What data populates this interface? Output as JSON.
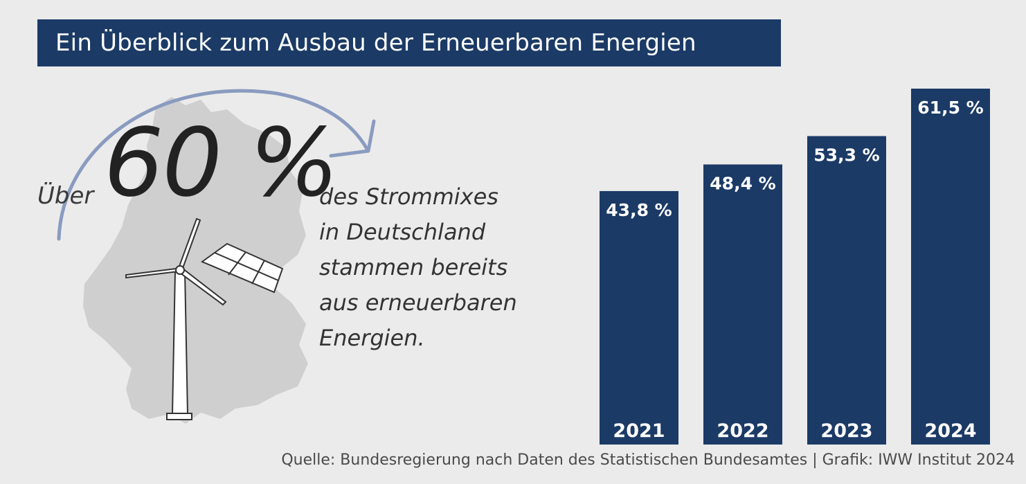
{
  "title": "Ein Überblick zum Ausbau der Erneuerbaren Energien",
  "headline": {
    "prefix": "Über",
    "big_value": "60 %",
    "description_lines": [
      "des Strommixes",
      "in Deutschland",
      "stammen bereits",
      "aus erneuerbaren",
      "Energien."
    ]
  },
  "colors": {
    "bar": "#1b3a66",
    "title_bg": "#1b3a66",
    "arrow": "#8a9bc0",
    "map": "#cfcfcf",
    "background": "#ebebeb"
  },
  "icons": [
    "germany-map-icon",
    "wind-turbine-icon",
    "solar-panel-icon",
    "curved-arrow-icon"
  ],
  "chart_data": {
    "type": "bar",
    "categories": [
      "2021",
      "2022",
      "2023",
      "2024"
    ],
    "values": [
      43.8,
      48.4,
      53.3,
      61.5
    ],
    "value_labels": [
      "43,8 %",
      "48,4 %",
      "53,3 %",
      "61,5 %"
    ],
    "title": "",
    "xlabel": "",
    "ylabel": "",
    "ylim": [
      0,
      61.5
    ],
    "grid": false,
    "legend": "none"
  },
  "source": "Quelle: Bundesregierung nach Daten des Statistischen Bundesamtes | Grafik: IWW Institut 2024"
}
